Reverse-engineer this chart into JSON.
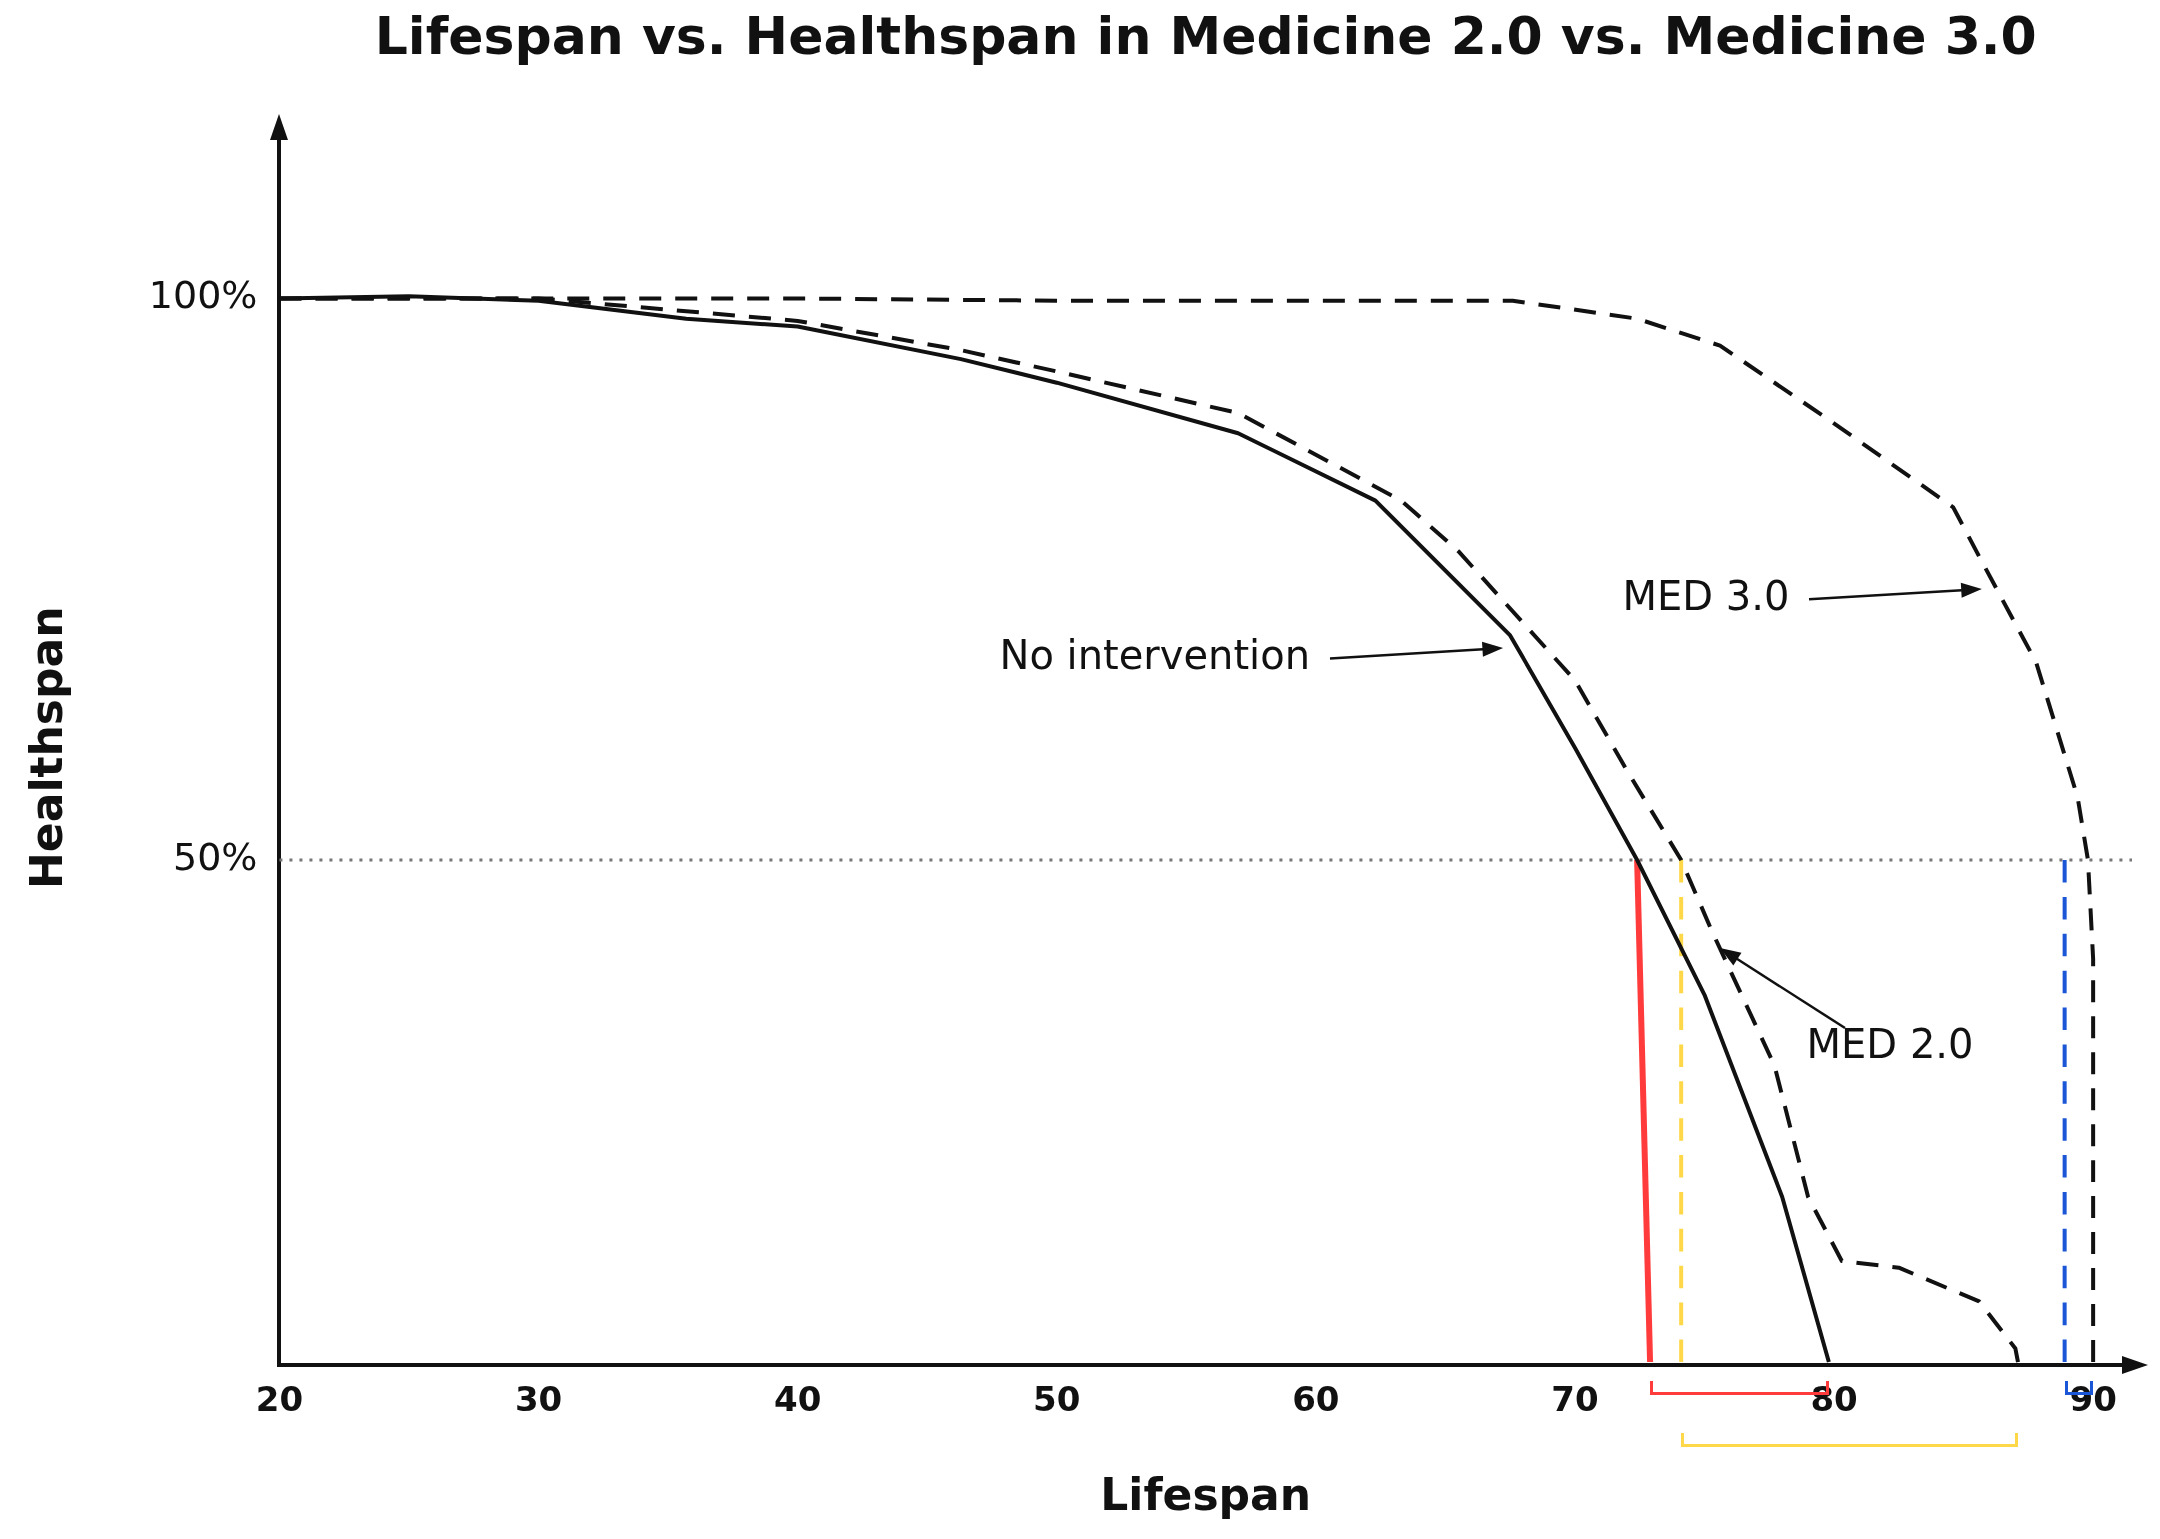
{
  "chart_data": {
    "type": "line",
    "title": "Lifespan vs. Healthspan in Medicine 2.0 vs. Medicine 3.0",
    "xlabel": "Lifespan",
    "ylabel": "Healthspan",
    "xlim": [
      20,
      91.5
    ],
    "xticks": [
      20,
      30,
      40,
      50,
      60,
      70,
      80,
      90
    ],
    "ylim": [
      5,
      115
    ],
    "yticks": [
      {
        "value": 50,
        "label": "50%"
      },
      {
        "value": 100,
        "label": "100%"
      }
    ],
    "grid": false,
    "legend": false,
    "marker": "none",
    "series": [
      {
        "color": "#111111",
        "line_style": "solid",
        "x": [
          20,
          25,
          30,
          35.7,
          40,
          46.3,
          50,
          57,
          62.3,
          67.5,
          70,
          72.4,
          75,
          78,
          79.8
        ],
        "values": [
          100,
          100.2,
          99.8,
          98.2,
          97.5,
          94.6,
          92.5,
          88,
          82,
          70,
          60,
          50,
          38,
          20,
          5.3
        ]
      },
      {
        "color": "#111111",
        "line_style": "dashed",
        "x": [
          20,
          30,
          40,
          46.3,
          50,
          57,
          63.3,
          65.5,
          70,
          72,
          74.1,
          75.3,
          77.7,
          79,
          80.3,
          82.5,
          85.6,
          87,
          87.1
        ],
        "values": [
          100,
          100,
          98,
          95.4,
          93.5,
          89.8,
          82,
          77.5,
          66,
          58,
          50,
          43.6,
          31.7,
          20,
          14.3,
          13.7,
          10.7,
          6.5,
          5.3
        ]
      },
      {
        "color": "#111111",
        "line_style": "dashed",
        "x": [
          20,
          30,
          40,
          50,
          60,
          67.6,
          72.4,
          75.6,
          79.8,
          84.6,
          85.7,
          87.8,
          89.4,
          89.8,
          90,
          90
        ],
        "values": [
          100,
          100,
          100,
          99.8,
          99.8,
          99.8,
          98.2,
          95.8,
          89.2,
          81.4,
          76.6,
          67.6,
          55.6,
          50,
          41.2,
          5.3
        ]
      },
      {
        "color": "#ff3b3b",
        "line_style": "solid",
        "x": [
          72.4,
          72.9
        ],
        "values": [
          50,
          5.3
        ]
      },
      {
        "color": "#ffd84a",
        "line_style": "dashed",
        "x": [
          74.1,
          74.1
        ],
        "values": [
          50,
          5.3
        ]
      },
      {
        "color": "#1a56d6",
        "line_style": "dashed",
        "x": [
          88.9,
          88.9
        ],
        "values": [
          50,
          5.3
        ]
      }
    ],
    "ref_lines": [
      {
        "axis": "y",
        "value": 50,
        "color": "#777777",
        "line_style": "dotted"
      }
    ],
    "annotations": [
      "No intervention",
      "MED 3.0",
      {
        "text": "MED 2.0",
        "x": 75.6,
        "y": 42.2
      }
    ]
  }
}
